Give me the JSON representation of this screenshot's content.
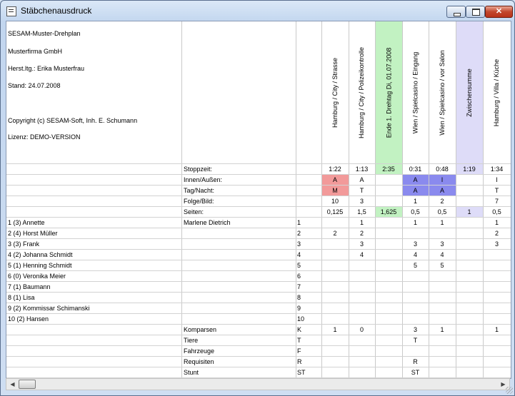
{
  "window": {
    "title": "Stäbchenausdruck"
  },
  "header_info": [
    "SESAM-Muster-Drehplan",
    "Musterfirma GmbH",
    "Herst.ltg.: Erika Musterfrau",
    "Stand: 24.07.2008",
    "",
    "Copyright (c) SESAM-Soft, Inh. E. Schumann",
    "Lizenz: DEMO-VERSION"
  ],
  "colors": {
    "green": "#c2f2c2",
    "lavender": "#dedcf8",
    "red": "#f29a9a",
    "blue": "#8a8aee",
    "grid": "#c9c9c9"
  },
  "columns": [
    {
      "label": "Hamburg / City / Strasse",
      "bg": ""
    },
    {
      "label": "Hamburg / City / Polizeikontrolle",
      "bg": ""
    },
    {
      "label": "Ende 1. Drehtag   Di, 01.07.2008",
      "bg": "green"
    },
    {
      "label": "Wien / Spielcasino / Eingang",
      "bg": ""
    },
    {
      "label": "Wien / Spielcasino / vor Salon",
      "bg": ""
    },
    {
      "label": "Zwischensumme",
      "bg": "lavender"
    },
    {
      "label": "Hamburg / Villa / Küche",
      "bg": ""
    }
  ],
  "info_rows": [
    {
      "label": "Stoppzeit:",
      "values": [
        "1:22",
        "1:13",
        "2:35",
        "0:31",
        "0:48",
        "1:19",
        "1:34"
      ],
      "colors": [
        "",
        "",
        "green",
        "",
        "",
        "lavender",
        ""
      ]
    },
    {
      "label": "Innen/Außen:",
      "values": [
        "A",
        "A",
        "",
        "A",
        "I",
        "",
        "I"
      ],
      "colors": [
        "red",
        "",
        "",
        "blue",
        "blue",
        "",
        ""
      ]
    },
    {
      "label": "Tag/Nacht:",
      "values": [
        "M",
        "T",
        "",
        "A",
        "A",
        "",
        "T"
      ],
      "colors": [
        "red",
        "",
        "",
        "blue",
        "blue",
        "",
        ""
      ]
    },
    {
      "label": "Folge/Bild:",
      "values": [
        "10",
        "3",
        "",
        "1",
        "2",
        "",
        "7"
      ],
      "colors": [
        "",
        "",
        "",
        "",
        "",
        "",
        ""
      ]
    },
    {
      "label": "Seiten:",
      "values": [
        "0,125",
        "1,5",
        "1,625",
        "0,5",
        "0,5",
        "1",
        "0,5"
      ],
      "colors": [
        "",
        "",
        "green",
        "",
        "",
        "lavender",
        ""
      ]
    }
  ],
  "cast_rows": [
    {
      "name": "1 (3) Annette",
      "actor": "Marlene Dietrich",
      "code": "1",
      "values": [
        "",
        "1",
        "",
        "1",
        "1",
        "",
        "1"
      ]
    },
    {
      "name": "2 (4) Horst Müller",
      "actor": "",
      "code": "2",
      "values": [
        "2",
        "2",
        "",
        "",
        "",
        "",
        "2"
      ]
    },
    {
      "name": "3 (3) Frank",
      "actor": "",
      "code": "3",
      "values": [
        "",
        "3",
        "",
        "3",
        "3",
        "",
        "3"
      ]
    },
    {
      "name": "4 (2) Johanna Schmidt",
      "actor": "",
      "code": "4",
      "values": [
        "",
        "4",
        "",
        "4",
        "4",
        "",
        ""
      ]
    },
    {
      "name": "5 (1) Henning Schmidt",
      "actor": "",
      "code": "5",
      "values": [
        "",
        "",
        "",
        "5",
        "5",
        "",
        ""
      ]
    },
    {
      "name": "6 (0) Veronika Meier",
      "actor": "",
      "code": "6",
      "values": [
        "",
        "",
        "",
        "",
        "",
        "",
        ""
      ]
    },
    {
      "name": "7 (1) Baumann",
      "actor": "",
      "code": "7",
      "values": [
        "",
        "",
        "",
        "",
        "",
        "",
        ""
      ]
    },
    {
      "name": "8 (1) Lisa",
      "actor": "",
      "code": "8",
      "values": [
        "",
        "",
        "",
        "",
        "",
        "",
        ""
      ]
    },
    {
      "name": "9 (2) Kommissar Schimanski",
      "actor": "",
      "code": "9",
      "values": [
        "",
        "",
        "",
        "",
        "",
        "",
        ""
      ]
    },
    {
      "name": "10 (2) Hansen",
      "actor": "",
      "code": "10",
      "values": [
        "",
        "",
        "",
        "",
        "",
        "",
        ""
      ]
    },
    {
      "name": "",
      "actor": "Komparsen",
      "code": "K",
      "values": [
        "1",
        "0",
        "",
        "3",
        "1",
        "",
        "1"
      ]
    },
    {
      "name": "",
      "actor": "Tiere",
      "code": "T",
      "values": [
        "",
        "",
        "",
        "T",
        "",
        "",
        ""
      ]
    },
    {
      "name": "",
      "actor": "Fahrzeuge",
      "code": "F",
      "values": [
        "",
        "",
        "",
        "",
        "",
        "",
        ""
      ]
    },
    {
      "name": "",
      "actor": "Requisiten",
      "code": "R",
      "values": [
        "",
        "",
        "",
        "R",
        "",
        "",
        ""
      ]
    },
    {
      "name": "",
      "actor": "Stunt",
      "code": "ST",
      "values": [
        "",
        "",
        "",
        "ST",
        "",
        "",
        ""
      ]
    }
  ]
}
